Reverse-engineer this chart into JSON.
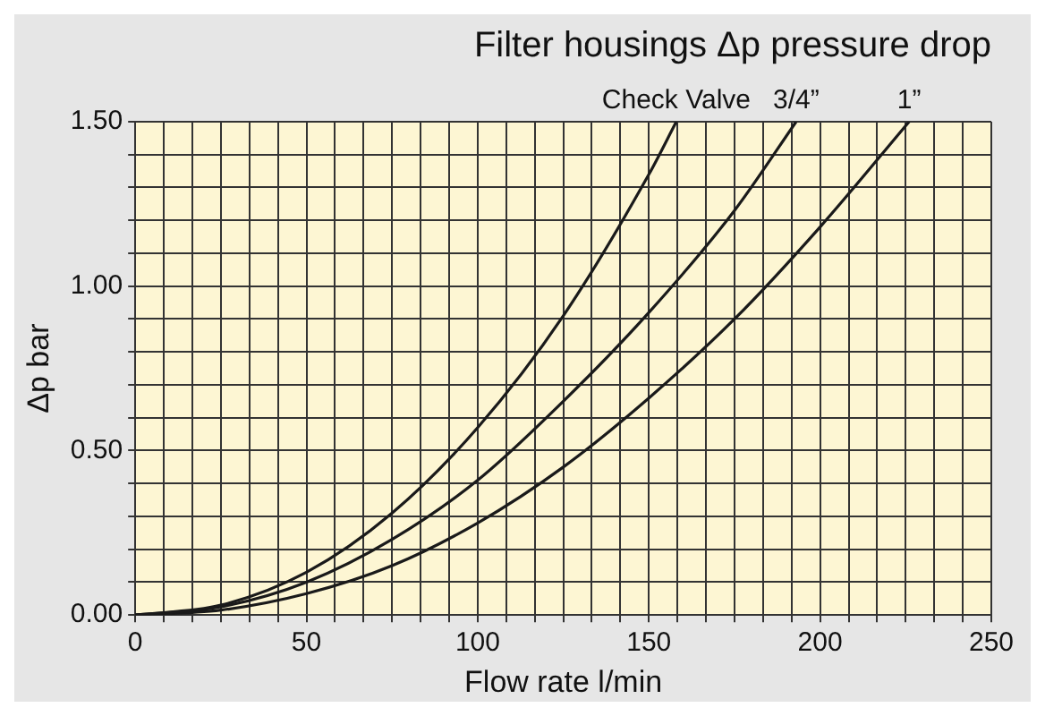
{
  "chart_data": {
    "type": "line",
    "title": "Filter housings Δp pressure drop",
    "xlabel": "Flow rate l/min",
    "ylabel": "Δp bar",
    "xlim": [
      0,
      250
    ],
    "ylim": [
      0,
      1.5
    ],
    "xticks": [
      0,
      {
        "value": 8.33,
        "label": null
      },
      {
        "value": 16.67,
        "label": null
      },
      {
        "value": 25,
        "label": null
      },
      {
        "value": 33.33,
        "label": null
      },
      {
        "value": 41.67,
        "label": null
      },
      50,
      {
        "value": 58.33,
        "label": null
      },
      {
        "value": 66.67,
        "label": null
      },
      {
        "value": 75,
        "label": null
      },
      {
        "value": 83.33,
        "label": null
      },
      {
        "value": 91.67,
        "label": null
      },
      100,
      {
        "value": 108.33,
        "label": null
      },
      {
        "value": 116.67,
        "label": null
      },
      {
        "value": 125,
        "label": null
      },
      {
        "value": 133.33,
        "label": null
      },
      {
        "value": 141.67,
        "label": null
      },
      150,
      {
        "value": 158.33,
        "label": null
      },
      {
        "value": 166.67,
        "label": null
      },
      {
        "value": 175,
        "label": null
      },
      {
        "value": 183.33,
        "label": null
      },
      {
        "value": 191.67,
        "label": null
      },
      200,
      {
        "value": 208.33,
        "label": null
      },
      {
        "value": 216.67,
        "label": null
      },
      {
        "value": 225,
        "label": null
      },
      {
        "value": 233.33,
        "label": null
      },
      {
        "value": 241.67,
        "label": null
      },
      250
    ],
    "yticks": [
      {
        "value": 0,
        "label": "0.00"
      },
      {
        "value": 0.1,
        "label": null
      },
      {
        "value": 0.2,
        "label": null
      },
      {
        "value": 0.3,
        "label": null
      },
      {
        "value": 0.4,
        "label": null
      },
      {
        "value": 0.5,
        "label": "0.50"
      },
      {
        "value": 0.6,
        "label": null
      },
      {
        "value": 0.7,
        "label": null
      },
      {
        "value": 0.8,
        "label": null
      },
      {
        "value": 0.9,
        "label": null
      },
      {
        "value": 1.0,
        "label": "1.00"
      },
      {
        "value": 1.1,
        "label": null
      },
      {
        "value": 1.2,
        "label": null
      },
      {
        "value": 1.3,
        "label": null
      },
      {
        "value": 1.4,
        "label": null
      },
      {
        "value": 1.5,
        "label": "1.50"
      }
    ],
    "grid": true,
    "marker": "none",
    "line_style": "solid",
    "series": [
      {
        "name": "Check Valve",
        "color": "#1a1a1a",
        "x": [
          0,
          25,
          50,
          75,
          100,
          125,
          150,
          158
        ],
        "values": [
          0,
          0.03,
          0.13,
          0.31,
          0.57,
          0.91,
          1.34,
          1.5
        ]
      },
      {
        "name": "3/4”",
        "color": "#1a1a1a",
        "x": [
          0,
          25,
          50,
          75,
          100,
          125,
          150,
          175,
          193
        ],
        "values": [
          0,
          0.025,
          0.1,
          0.23,
          0.41,
          0.65,
          0.92,
          1.23,
          1.5
        ]
      },
      {
        "name": "1”",
        "color": "#1a1a1a",
        "x": [
          0,
          25,
          50,
          75,
          100,
          125,
          150,
          175,
          200,
          226
        ],
        "values": [
          0,
          0.015,
          0.065,
          0.15,
          0.28,
          0.45,
          0.66,
          0.9,
          1.18,
          1.5
        ]
      }
    ]
  }
}
